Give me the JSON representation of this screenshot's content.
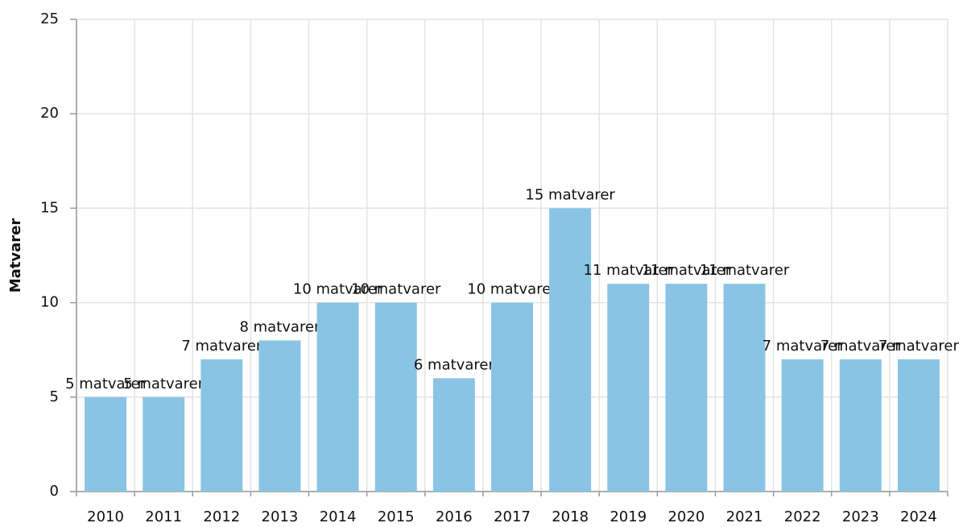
{
  "chart_data": {
    "type": "bar",
    "y_label": "Matvarer",
    "categories": [
      "2010",
      "2011",
      "2012",
      "2013",
      "2014",
      "2015",
      "2016",
      "2017",
      "2018",
      "2019",
      "2020",
      "2021",
      "2022",
      "2023",
      "2024"
    ],
    "values": [
      5,
      5,
      7,
      8,
      10,
      10,
      6,
      10,
      15,
      11,
      11,
      11,
      7,
      7,
      7
    ],
    "value_labels": [
      "5 matvarer",
      "5 matvarer",
      "7 matvarer",
      "8 matvarer",
      "10 matvarer",
      "10 matvarer",
      "6 matvarer",
      "10 matvarer",
      "15 matvarer",
      "11 matvarer",
      "11 matvarer",
      "11 matvarer",
      "7 matvarer",
      "7 matvarer",
      "7 matvarer"
    ],
    "color": "#89c4e4",
    "ylim": [
      0,
      25
    ],
    "yticks": [
      0,
      5,
      10,
      15,
      20,
      25
    ],
    "grid": true
  }
}
